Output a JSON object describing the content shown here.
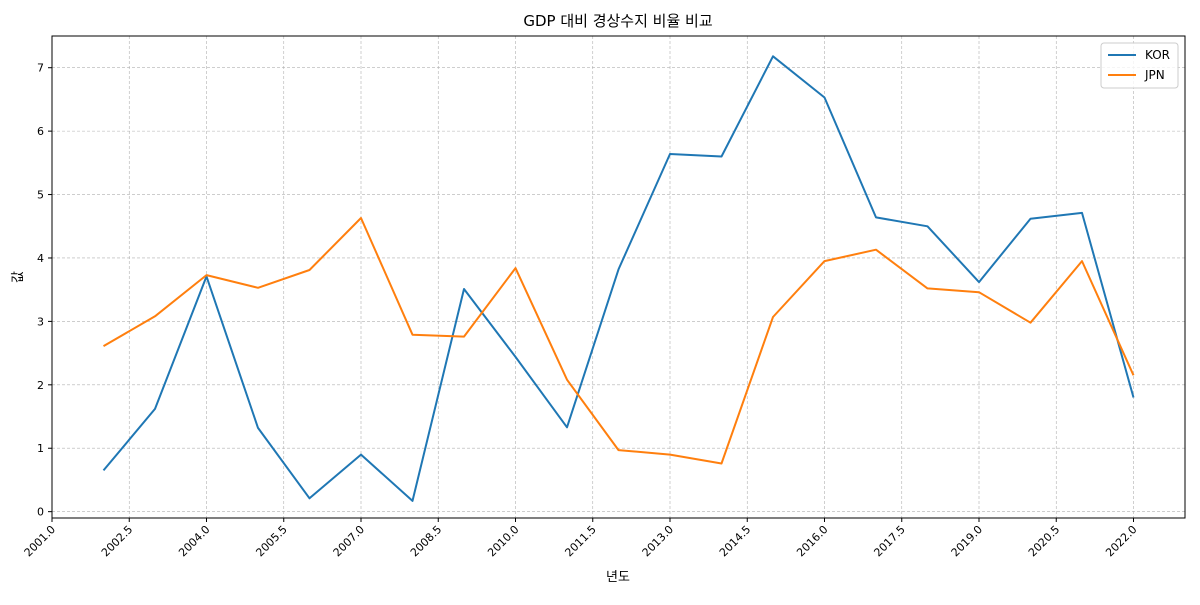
{
  "chart_data": {
    "type": "line",
    "title": "GDP 대비 경상수지 비율 비교",
    "xlabel": "년도",
    "ylabel": "값",
    "xlim": [
      2001.0,
      2023.0
    ],
    "ylim": [
      -0.1,
      7.5
    ],
    "x_ticks": [
      2001.0,
      2002.5,
      2004.0,
      2005.5,
      2007.0,
      2008.5,
      2010.0,
      2011.5,
      2013.0,
      2014.5,
      2016.0,
      2017.5,
      2019.0,
      2020.5,
      2022.0
    ],
    "x_tick_labels": [
      "2001.0",
      "2002.5",
      "2004.0",
      "2005.5",
      "2007.0",
      "2008.5",
      "2010.0",
      "2011.5",
      "2013.0",
      "2014.5",
      "2016.0",
      "2017.5",
      "2019.0",
      "2020.5",
      "2022.0"
    ],
    "y_ticks": [
      0,
      1,
      2,
      3,
      4,
      5,
      6,
      7
    ],
    "y_tick_labels": [
      "0",
      "1",
      "2",
      "3",
      "4",
      "5",
      "6",
      "7"
    ],
    "grid": true,
    "legend_position": "top-right",
    "x": [
      2002,
      2003,
      2004,
      2005,
      2006,
      2007,
      2008,
      2009,
      2010,
      2011,
      2012,
      2013,
      2014,
      2015,
      2016,
      2017,
      2018,
      2019,
      2020,
      2021,
      2022
    ],
    "series": [
      {
        "name": "KOR",
        "color": "#1f77b4",
        "values": [
          0.65,
          1.62,
          3.71,
          1.32,
          0.21,
          0.9,
          0.17,
          3.51,
          2.44,
          1.33,
          3.82,
          5.64,
          5.6,
          7.18,
          6.53,
          4.64,
          4.5,
          3.62,
          4.62,
          4.71,
          1.8
        ]
      },
      {
        "name": "JPN",
        "color": "#ff7f0e",
        "values": [
          2.61,
          3.08,
          3.73,
          3.53,
          3.81,
          4.63,
          2.79,
          2.76,
          3.84,
          2.08,
          0.97,
          0.9,
          0.76,
          3.07,
          3.95,
          4.13,
          3.52,
          3.46,
          2.98,
          3.95,
          2.15
        ]
      }
    ]
  }
}
